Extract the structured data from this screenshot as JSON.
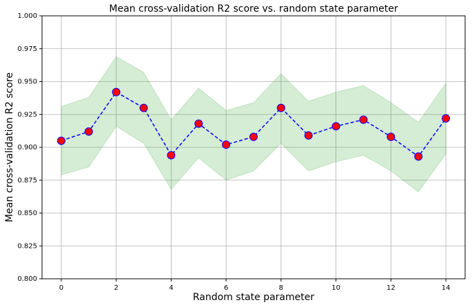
{
  "chart_data": {
    "type": "line",
    "title": "Mean cross-validation R2 score vs. random state parameter",
    "xlabel": "Random state parameter",
    "ylabel": "Mean cross-validation R2 score",
    "x": [
      0,
      1,
      2,
      3,
      4,
      5,
      6,
      7,
      8,
      9,
      10,
      11,
      12,
      13,
      14
    ],
    "values": [
      0.905,
      0.912,
      0.942,
      0.93,
      0.894,
      0.918,
      0.902,
      0.908,
      0.93,
      0.909,
      0.916,
      0.921,
      0.908,
      0.893,
      0.922
    ],
    "band": {
      "upper": [
        0.931,
        0.938,
        0.969,
        0.957,
        0.921,
        0.945,
        0.928,
        0.934,
        0.956,
        0.935,
        0.942,
        0.947,
        0.934,
        0.919,
        0.949
      ],
      "lower": [
        0.879,
        0.885,
        0.916,
        0.903,
        0.868,
        0.892,
        0.875,
        0.882,
        0.903,
        0.882,
        0.889,
        0.894,
        0.882,
        0.866,
        0.895
      ],
      "color": "#2ca02c"
    },
    "color": "#0000ff",
    "marker_color": "#ff0000",
    "xlim": [
      -0.7,
      14.7
    ],
    "ylim": [
      0.8,
      1.0
    ],
    "xticks": [
      0,
      2,
      4,
      6,
      8,
      10,
      12,
      14
    ],
    "yticks": [
      {
        "value": 0.8,
        "label": "0.800"
      },
      {
        "value": 0.825,
        "label": "0.825"
      },
      {
        "value": 0.85,
        "label": "0.850"
      },
      {
        "value": 0.875,
        "label": "0.875"
      },
      {
        "value": 0.9,
        "label": "0.900"
      },
      {
        "value": 0.925,
        "label": "0.925"
      },
      {
        "value": 0.95,
        "label": "0.950"
      },
      {
        "value": 0.975,
        "label": "0.975"
      },
      {
        "value": 1.0,
        "label": "1.000"
      }
    ],
    "grid": true
  }
}
